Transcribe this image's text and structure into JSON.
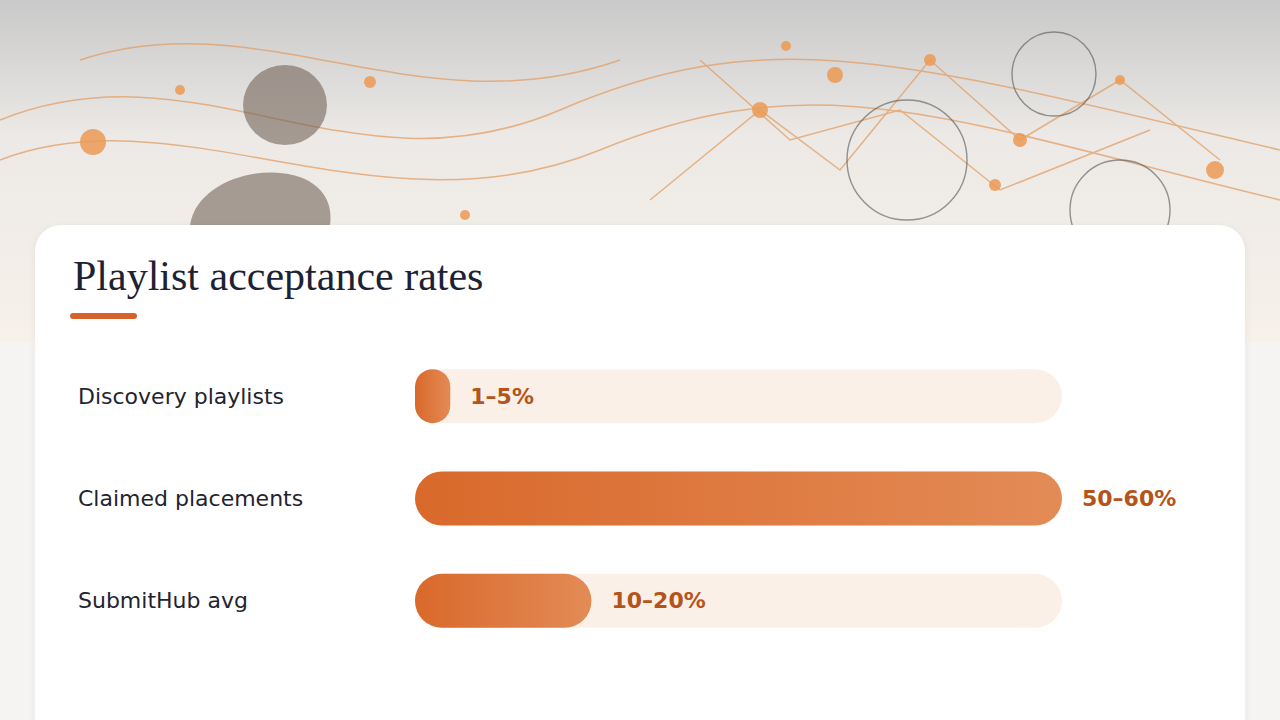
{
  "chart_data": {
    "type": "bar",
    "orientation": "horizontal",
    "title": "Playlist acceptance rates",
    "categories": [
      "Discovery playlists",
      "Claimed placements",
      "SubmitHub avg"
    ],
    "values": [
      3,
      55,
      15
    ],
    "value_labels": [
      "1–5%",
      "50–60%",
      "10–20%"
    ],
    "color": "#d9692b",
    "xlim": [
      0,
      55
    ],
    "data_labels": true,
    "tick_labels": "y",
    "grid": false
  }
}
